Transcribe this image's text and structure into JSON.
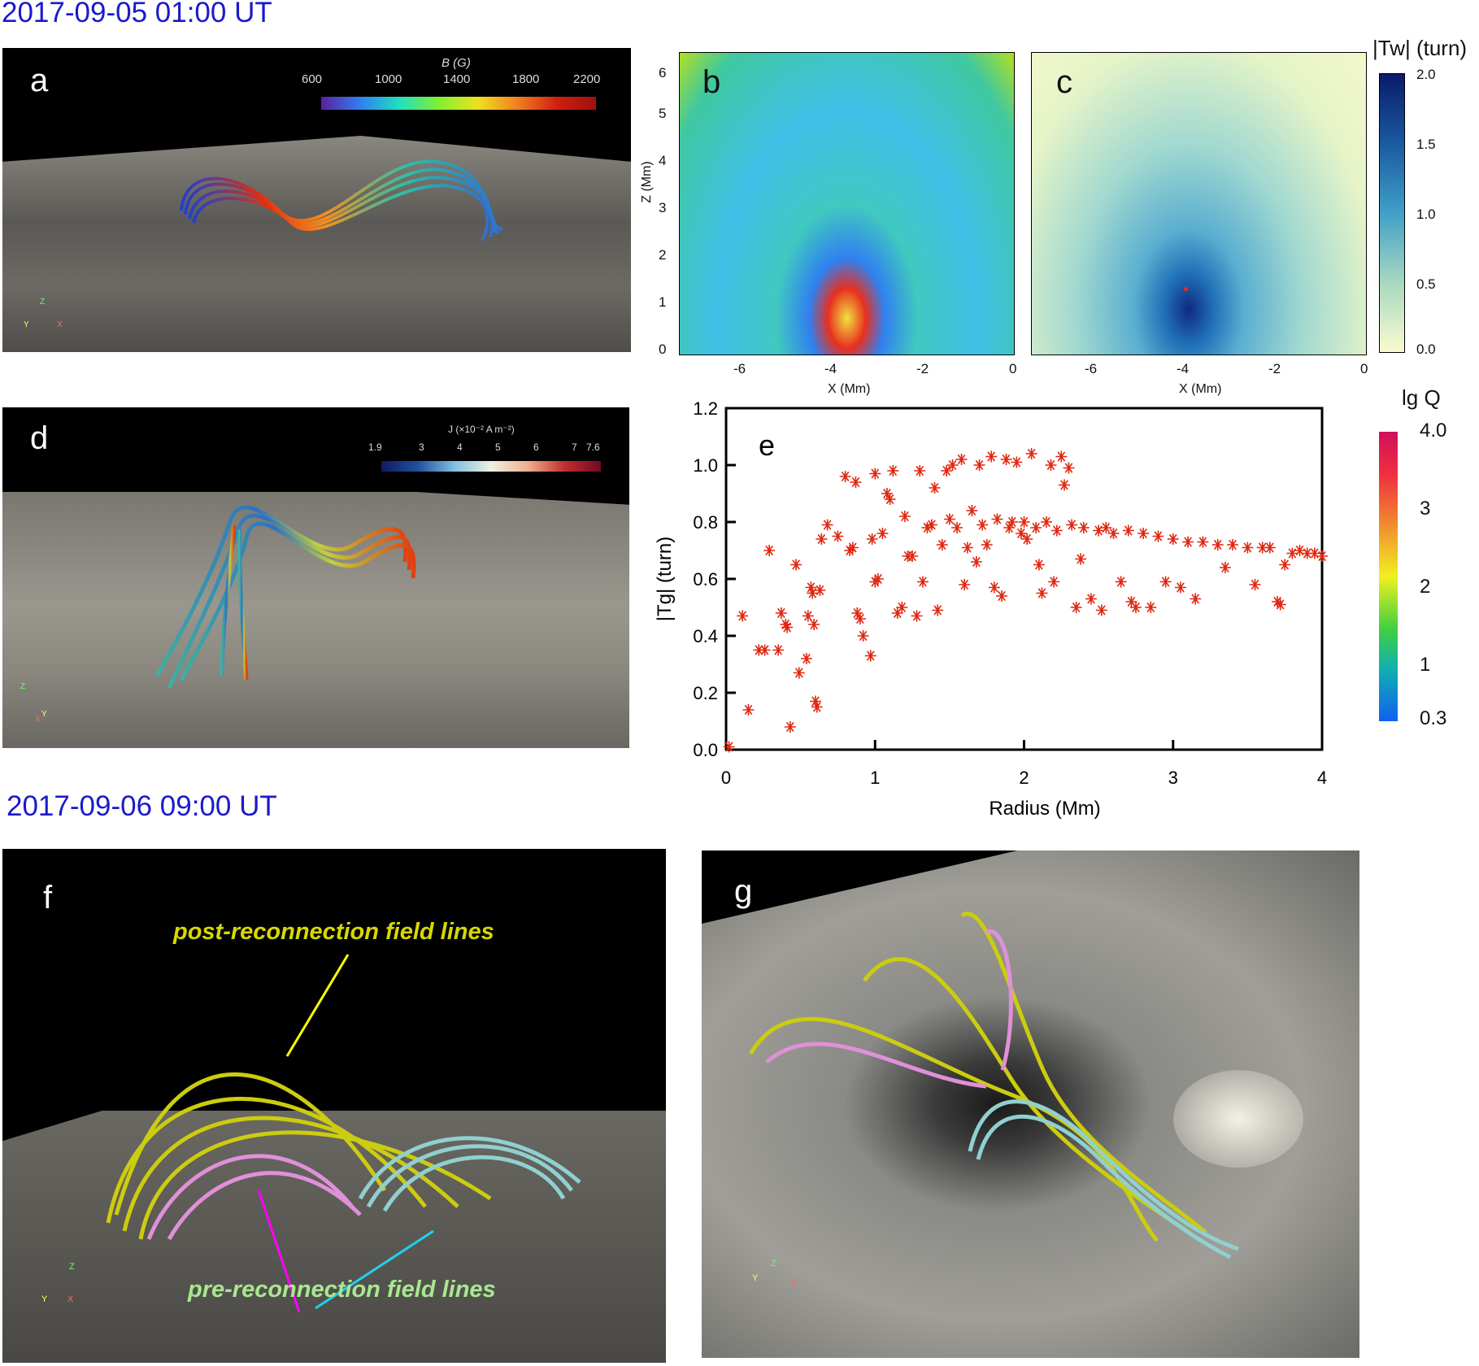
{
  "dates": {
    "first": "2017-09-05 01:00 UT",
    "second": "2017-09-06 09:00 UT"
  },
  "panel_a": {
    "label": "a",
    "colorbar_title": "B (G)",
    "ticks": [
      "600",
      "1000",
      "1400",
      "1800",
      "2200"
    ],
    "axes": {
      "z": "Z",
      "y": "Y",
      "x": "X"
    }
  },
  "panel_b": {
    "label": "b",
    "xlabel": "X (Mm)",
    "ylabel": "Z (Mm)",
    "xticks": [
      "-6",
      "-4",
      "-2",
      "0"
    ],
    "yticks": [
      "0",
      "1",
      "2",
      "3",
      "4",
      "5",
      "6"
    ]
  },
  "panel_c": {
    "label": "c",
    "xlabel": "X (Mm)",
    "xticks": [
      "-6",
      "-4",
      "-2",
      "0"
    ]
  },
  "tw_colorbar": {
    "title": "|Tw| (turn)",
    "ticks": [
      "2.0",
      "1.5",
      "1.0",
      "0.5",
      "0.0"
    ]
  },
  "panel_d": {
    "label": "d",
    "colorbar_title": "J (×10⁻² A m⁻²)",
    "ticks": [
      "1.9",
      "3",
      "4",
      "5",
      "6",
      "7",
      "7.6"
    ],
    "axes": {
      "z": "Z",
      "y": "Y",
      "x": "X"
    }
  },
  "lgq_colorbar": {
    "title": "lg Q",
    "ticks": [
      "4.0",
      "3",
      "2",
      "1",
      "0.3"
    ]
  },
  "panel_f": {
    "label": "f",
    "post_label": "post-reconnection field lines",
    "pre_label": "pre-reconnection field lines",
    "axes": {
      "z": "Z",
      "y": "Y",
      "x": "X"
    }
  },
  "panel_g": {
    "label": "g",
    "axes": {
      "z": "Z",
      "y": "Y",
      "x": "X"
    }
  },
  "colors": {
    "date_blue": "#1a1acc",
    "scatter_red": "#e0260f",
    "post_yellow": "#d8d800",
    "pre_green": "#a8e890"
  },
  "chart_data": {
    "type": "scatter",
    "label": "e",
    "xlabel": "Radius (Mm)",
    "ylabel": "|Tg| (turn)",
    "xlim": [
      0,
      4
    ],
    "ylim": [
      0,
      1.2
    ],
    "xticks": [
      "0",
      "1",
      "2",
      "3",
      "4"
    ],
    "yticks": [
      "0.0",
      "0.2",
      "0.4",
      "0.6",
      "0.8",
      "1.0",
      "1.2"
    ],
    "marker": "asterisk",
    "points": [
      [
        0.02,
        0.01
      ],
      [
        0.11,
        0.47
      ],
      [
        0.15,
        0.14
      ],
      [
        0.22,
        0.35
      ],
      [
        0.26,
        0.35
      ],
      [
        0.29,
        0.7
      ],
      [
        0.35,
        0.35
      ],
      [
        0.37,
        0.48
      ],
      [
        0.4,
        0.44
      ],
      [
        0.41,
        0.43
      ],
      [
        0.43,
        0.08
      ],
      [
        0.47,
        0.65
      ],
      [
        0.49,
        0.27
      ],
      [
        0.54,
        0.32
      ],
      [
        0.55,
        0.47
      ],
      [
        0.57,
        0.57
      ],
      [
        0.58,
        0.55
      ],
      [
        0.59,
        0.44
      ],
      [
        0.6,
        0.17
      ],
      [
        0.61,
        0.15
      ],
      [
        0.63,
        0.56
      ],
      [
        0.64,
        0.74
      ],
      [
        0.68,
        0.79
      ],
      [
        0.75,
        0.75
      ],
      [
        0.8,
        0.96
      ],
      [
        0.83,
        0.7
      ],
      [
        0.85,
        0.71
      ],
      [
        0.87,
        0.94
      ],
      [
        0.88,
        0.48
      ],
      [
        0.9,
        0.46
      ],
      [
        0.92,
        0.4
      ],
      [
        0.97,
        0.33
      ],
      [
        1.0,
        0.97
      ],
      [
        0.98,
        0.74
      ],
      [
        1.0,
        0.59
      ],
      [
        1.02,
        0.6
      ],
      [
        1.05,
        0.76
      ],
      [
        1.08,
        0.9
      ],
      [
        1.1,
        0.88
      ],
      [
        1.12,
        0.98
      ],
      [
        1.15,
        0.48
      ],
      [
        1.18,
        0.5
      ],
      [
        1.2,
        0.82
      ],
      [
        1.22,
        0.68
      ],
      [
        1.25,
        0.68
      ],
      [
        1.28,
        0.47
      ],
      [
        1.3,
        0.98
      ],
      [
        1.32,
        0.59
      ],
      [
        1.35,
        0.78
      ],
      [
        1.38,
        0.79
      ],
      [
        1.4,
        0.92
      ],
      [
        1.42,
        0.49
      ],
      [
        1.45,
        0.72
      ],
      [
        1.48,
        0.98
      ],
      [
        1.5,
        0.81
      ],
      [
        1.52,
        1.0
      ],
      [
        1.55,
        0.78
      ],
      [
        1.58,
        1.02
      ],
      [
        1.6,
        0.58
      ],
      [
        1.62,
        0.71
      ],
      [
        1.65,
        0.84
      ],
      [
        1.68,
        0.66
      ],
      [
        1.7,
        1.0
      ],
      [
        1.72,
        0.79
      ],
      [
        1.75,
        0.72
      ],
      [
        1.78,
        1.03
      ],
      [
        1.8,
        0.57
      ],
      [
        1.82,
        0.81
      ],
      [
        1.85,
        0.54
      ],
      [
        1.88,
        1.02
      ],
      [
        1.9,
        0.78
      ],
      [
        1.92,
        0.8
      ],
      [
        1.95,
        1.01
      ],
      [
        1.98,
        0.76
      ],
      [
        2.0,
        0.8
      ],
      [
        2.02,
        0.74
      ],
      [
        2.05,
        1.04
      ],
      [
        2.08,
        0.78
      ],
      [
        2.1,
        0.65
      ],
      [
        2.12,
        0.55
      ],
      [
        2.15,
        0.8
      ],
      [
        2.18,
        1.0
      ],
      [
        2.2,
        0.59
      ],
      [
        2.22,
        0.77
      ],
      [
        2.25,
        1.03
      ],
      [
        2.27,
        0.93
      ],
      [
        2.3,
        0.99
      ],
      [
        2.32,
        0.79
      ],
      [
        2.35,
        0.5
      ],
      [
        2.38,
        0.67
      ],
      [
        2.4,
        0.78
      ],
      [
        2.45,
        0.53
      ],
      [
        2.5,
        0.77
      ],
      [
        2.52,
        0.49
      ],
      [
        2.55,
        0.78
      ],
      [
        2.6,
        0.76
      ],
      [
        2.65,
        0.59
      ],
      [
        2.7,
        0.77
      ],
      [
        2.72,
        0.52
      ],
      [
        2.75,
        0.5
      ],
      [
        2.8,
        0.76
      ],
      [
        2.85,
        0.5
      ],
      [
        2.9,
        0.75
      ],
      [
        2.95,
        0.59
      ],
      [
        3.0,
        0.74
      ],
      [
        3.05,
        0.57
      ],
      [
        3.1,
        0.73
      ],
      [
        3.15,
        0.53
      ],
      [
        3.2,
        0.73
      ],
      [
        3.3,
        0.72
      ],
      [
        3.35,
        0.64
      ],
      [
        3.4,
        0.72
      ],
      [
        3.5,
        0.71
      ],
      [
        3.55,
        0.58
      ],
      [
        3.6,
        0.71
      ],
      [
        3.65,
        0.71
      ],
      [
        3.7,
        0.52
      ],
      [
        3.72,
        0.51
      ],
      [
        3.75,
        0.65
      ],
      [
        3.8,
        0.69
      ],
      [
        3.85,
        0.7
      ],
      [
        3.9,
        0.69
      ],
      [
        3.95,
        0.69
      ],
      [
        4.0,
        0.68
      ]
    ]
  }
}
